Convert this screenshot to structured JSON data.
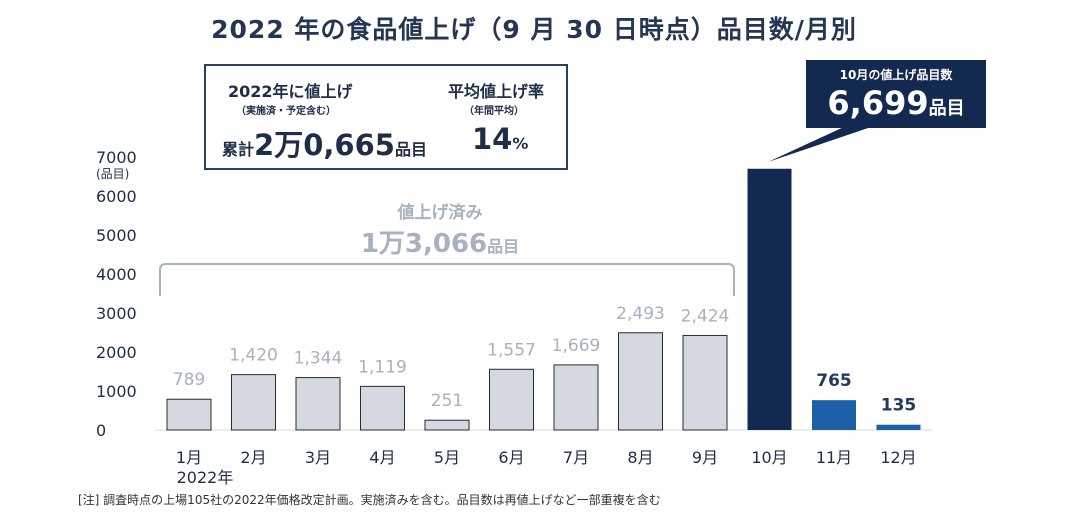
{
  "title": "2022 年の食品値上げ（9 月 30 日時点）品目数/月別",
  "summary": {
    "label": "2022年に値上げ",
    "label_sub": "（実施済・予定含む）",
    "total_prefix": "累計",
    "total_value": "2万0,665",
    "total_unit": "品目",
    "rate_label": "平均値上げ率",
    "rate_sub": "（年間平均）",
    "rate_value": "14",
    "rate_unit": "%"
  },
  "callout": {
    "label": "10月の値上げ品目数",
    "value": "6,699",
    "unit": "品目"
  },
  "done_bracket": {
    "label": "値上げ済み",
    "value": "1万3,066",
    "unit": "品目"
  },
  "note": "[注]  調査時点の上場105社の2022年価格改定計画。実施済みを含む。品目数は再値上げなど一部重複を含む",
  "colors": {
    "done_bar": "#d3d8e1",
    "done_label": "#a7b1bf",
    "october_bar": "#13294f",
    "future_bar": "#1d5fa8",
    "future_label": "#22395c",
    "text": "#1f2d46"
  },
  "chart_data": {
    "type": "bar",
    "title": "2022 年の食品値上げ（9 月 30 日時点）品目数/月別",
    "ylabel": "(品目)",
    "ylim": [
      0,
      7000
    ],
    "yticks": [
      "0",
      "1000",
      "2000",
      "3000",
      "4000",
      "5000",
      "6000",
      "7000"
    ],
    "year_label": "2022年",
    "categories": [
      "1月",
      "2月",
      "3月",
      "4月",
      "5月",
      "6月",
      "7月",
      "8月",
      "9月",
      "10月",
      "11月",
      "12月"
    ],
    "values": [
      789,
      1420,
      1344,
      1119,
      251,
      1557,
      1669,
      2493,
      2424,
      6699,
      765,
      135
    ],
    "value_labels": [
      "789",
      "1,420",
      "1,344",
      "1,119",
      "251",
      "1,557",
      "1,669",
      "2,493",
      "2,424",
      "",
      "765",
      "135"
    ],
    "status": [
      "done",
      "done",
      "done",
      "done",
      "done",
      "done",
      "done",
      "done",
      "done",
      "october",
      "future",
      "future"
    ]
  }
}
